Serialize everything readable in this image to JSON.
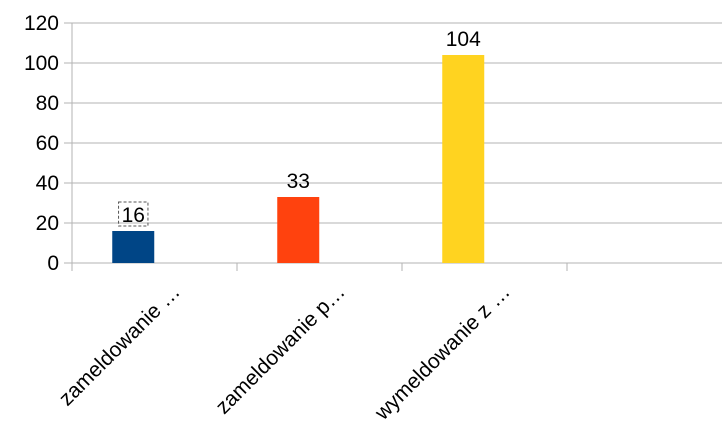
{
  "chart_data": {
    "type": "bar",
    "categories": [
      "zameldowanie …",
      "zameldowanie p…",
      "wymeldowanie z …"
    ],
    "values": [
      16,
      33,
      104
    ],
    "colors": [
      "#004586",
      "#ff420e",
      "#ffd320"
    ],
    "ylim": [
      0,
      120
    ],
    "yticks": [
      0,
      20,
      40,
      60,
      80,
      100,
      120
    ],
    "grid": true,
    "data_labels": [
      "16",
      "33",
      "104"
    ],
    "selected_label_index": 0,
    "legend": "none"
  }
}
